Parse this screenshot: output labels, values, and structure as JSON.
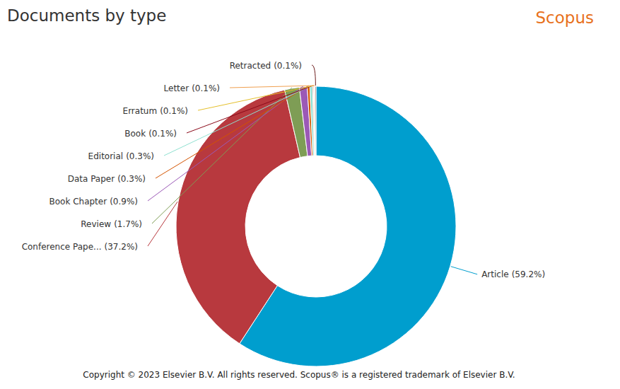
{
  "chart_data": {
    "type": "pie",
    "title": "Documents by type",
    "annotations": [
      "Scopus",
      "Copyright © 2023 Elsevier B.V. All rights reserved. Scopus® is a registered trademark of Elsevier B.V."
    ],
    "categories": [
      "Article",
      "Conference Pape...",
      "Review",
      "Book Chapter",
      "Data Paper",
      "Editorial",
      "Book",
      "Erratum",
      "Letter",
      "Retracted"
    ],
    "values": [
      59.2,
      37.2,
      1.7,
      0.9,
      0.3,
      0.3,
      0.1,
      0.1,
      0.1,
      0.1
    ],
    "value_labels": [
      "(59.2%)",
      "(37.2%)",
      "(1.7%)",
      "(0.9%)",
      "(0.3%)",
      "(0.3%)",
      "(0.1%)",
      "(0.1%)",
      "(0.1%)",
      "(0.1%)"
    ],
    "colors": [
      "#009ece",
      "#b8393e",
      "#7e9d55",
      "#9b59b6",
      "#d35400",
      "#8fe0d0",
      "#8b0a1a",
      "#e5c02b",
      "#f0a050",
      "#6b1b1b"
    ],
    "data_labels": true
  }
}
